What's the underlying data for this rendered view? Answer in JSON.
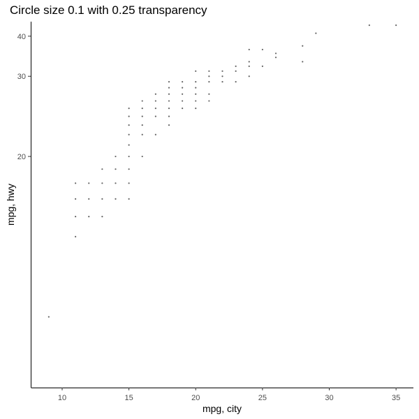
{
  "chart_data": {
    "type": "scatter",
    "title": "Circle size 0.1 with 0.25 transparency",
    "xlabel": "mpg, city",
    "ylabel": "mpg, hwy",
    "xlim": [
      7.7,
      36.3
    ],
    "ylim": [
      10.2,
      45.5
    ],
    "y_scale": "reciprocal",
    "x_ticks": [
      10,
      15,
      20,
      25,
      30,
      35
    ],
    "y_ticks": [
      20,
      30,
      40
    ],
    "grid": false,
    "point_color": "#000000",
    "point_alpha": 0.25,
    "points": [
      [
        9,
        12
      ],
      [
        11,
        15
      ],
      [
        11,
        16
      ],
      [
        11,
        17
      ],
      [
        11,
        18
      ],
      [
        12,
        16
      ],
      [
        12,
        17
      ],
      [
        12,
        18
      ],
      [
        13,
        16
      ],
      [
        13,
        17
      ],
      [
        13,
        18
      ],
      [
        13,
        19
      ],
      [
        14,
        17
      ],
      [
        14,
        18
      ],
      [
        14,
        19
      ],
      [
        14,
        20
      ],
      [
        15,
        17
      ],
      [
        15,
        18
      ],
      [
        15,
        19
      ],
      [
        15,
        20
      ],
      [
        15,
        21
      ],
      [
        15,
        22
      ],
      [
        15,
        23
      ],
      [
        15,
        24
      ],
      [
        15,
        25
      ],
      [
        16,
        20
      ],
      [
        16,
        22
      ],
      [
        16,
        23
      ],
      [
        16,
        24
      ],
      [
        16,
        25
      ],
      [
        16,
        26
      ],
      [
        17,
        22
      ],
      [
        17,
        24
      ],
      [
        17,
        25
      ],
      [
        17,
        26
      ],
      [
        17,
        27
      ],
      [
        18,
        23
      ],
      [
        18,
        24
      ],
      [
        18,
        25
      ],
      [
        18,
        26
      ],
      [
        18,
        27
      ],
      [
        18,
        28
      ],
      [
        18,
        29
      ],
      [
        19,
        25
      ],
      [
        19,
        26
      ],
      [
        19,
        27
      ],
      [
        19,
        28
      ],
      [
        19,
        29
      ],
      [
        20,
        25
      ],
      [
        20,
        26
      ],
      [
        20,
        27
      ],
      [
        20,
        28
      ],
      [
        20,
        29
      ],
      [
        20,
        31
      ],
      [
        21,
        26
      ],
      [
        21,
        27
      ],
      [
        21,
        29
      ],
      [
        21,
        30
      ],
      [
        21,
        31
      ],
      [
        22,
        29
      ],
      [
        22,
        30
      ],
      [
        22,
        31
      ],
      [
        23,
        29
      ],
      [
        23,
        31
      ],
      [
        23,
        32
      ],
      [
        24,
        30
      ],
      [
        24,
        32
      ],
      [
        24,
        33
      ],
      [
        24,
        36
      ],
      [
        25,
        32
      ],
      [
        25,
        36
      ],
      [
        26,
        34
      ],
      [
        26,
        35
      ],
      [
        28,
        33
      ],
      [
        28,
        37
      ],
      [
        29,
        41
      ],
      [
        33,
        44
      ],
      [
        35,
        44
      ]
    ]
  }
}
